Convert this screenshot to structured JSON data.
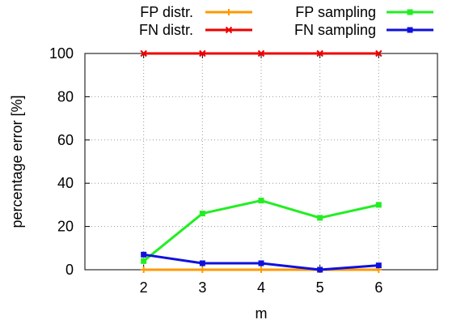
{
  "chart_data": {
    "type": "line",
    "title": "",
    "xlabel": "m",
    "ylabel": "percentage error [%]",
    "x": [
      2,
      3,
      4,
      5,
      6
    ],
    "xlim": [
      1,
      7
    ],
    "ylim": [
      0,
      100
    ],
    "xticks": [
      "2",
      "3",
      "4",
      "5",
      "6"
    ],
    "yticks": [
      "0",
      "20",
      "40",
      "60",
      "80",
      "100"
    ],
    "grid": true,
    "legend_position": "top",
    "series": [
      {
        "name": "FP distr.",
        "color": "#ff9900",
        "marker": "plus",
        "values": [
          0,
          0,
          0,
          0,
          0
        ]
      },
      {
        "name": "FN distr.",
        "color": "#ee0000",
        "marker": "cross",
        "values": [
          100,
          100,
          100,
          100,
          100
        ]
      },
      {
        "name": "FP sampling",
        "color": "#22ee22",
        "marker": "square",
        "values": [
          4,
          26,
          32,
          24,
          30
        ]
      },
      {
        "name": "FN sampling",
        "color": "#1010dd",
        "marker": "square",
        "values": [
          7,
          3,
          3,
          0,
          2
        ]
      }
    ]
  }
}
